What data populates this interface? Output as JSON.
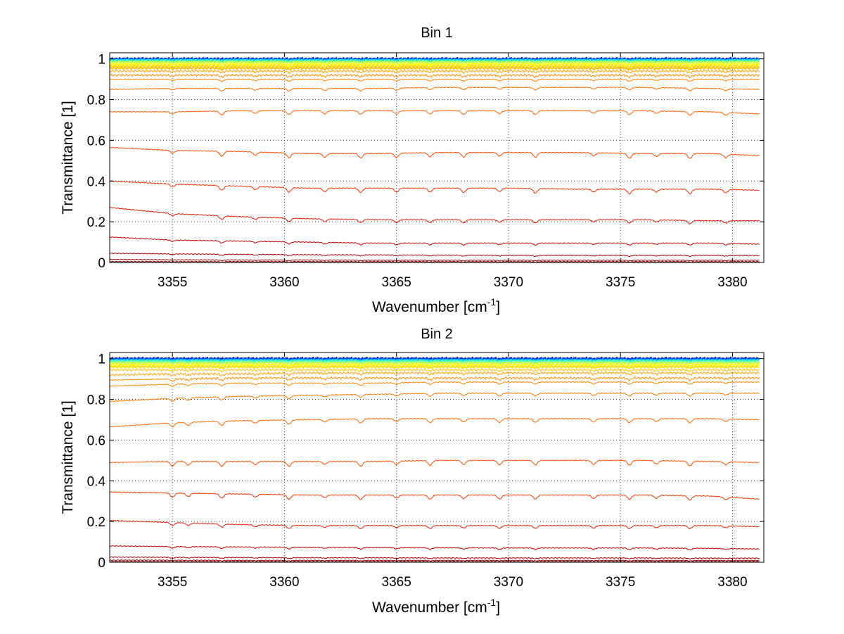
{
  "chart_data": [
    {
      "type": "line",
      "title": "Bin 1",
      "xlabel": "Wavenumber [cm",
      "xlabel_sup": "-1",
      "xlabel_end": "]",
      "ylabel": "Transmittance [1]",
      "xlim": [
        3352.2,
        3381.4
      ],
      "ylim": [
        0,
        1.03
      ],
      "xticks": [
        3355,
        3360,
        3365,
        3370,
        3375,
        3380
      ],
      "xtick_labels": [
        "3355",
        "3360",
        "3365",
        "3370",
        "3375",
        "3380"
      ],
      "yticks": [
        0,
        0.2,
        0.4,
        0.6,
        0.8,
        1
      ],
      "ytick_labels": [
        "0",
        "0.2",
        "0.4",
        "0.6",
        "0.8",
        "1"
      ],
      "grid": true,
      "legend": "none",
      "line_sample_wavenumbers": [
        3352.2,
        3355,
        3358,
        3361,
        3364,
        3367,
        3370,
        3373,
        3376,
        3379,
        3381.2
      ],
      "absorption_lines": [
        3355.0,
        3357.2,
        3358.7,
        3360.2,
        3361.8,
        3363.4,
        3365.0,
        3366.5,
        3368.0,
        3369.6,
        3371.2,
        3373.8,
        3375.4,
        3376.6,
        3378.1,
        3379.7
      ],
      "series": [
        {
          "color": "#00008f",
          "values": [
            1.0,
            1.0,
            1.0,
            1.0,
            1.0,
            1.0,
            1.0,
            1.0,
            1.0,
            1.0,
            1.0
          ]
        },
        {
          "color": "#0050ff",
          "values": [
            0.998,
            0.998,
            0.998,
            0.998,
            0.998,
            0.998,
            0.998,
            0.998,
            0.998,
            0.998,
            0.998
          ]
        },
        {
          "color": "#00c0ff",
          "values": [
            0.995,
            0.995,
            0.995,
            0.995,
            0.995,
            0.995,
            0.995,
            0.995,
            0.995,
            0.995,
            0.995
          ]
        },
        {
          "color": "#40ffbf",
          "values": [
            0.99,
            0.99,
            0.99,
            0.99,
            0.99,
            0.99,
            0.99,
            0.99,
            0.99,
            0.99,
            0.99
          ]
        },
        {
          "color": "#afff50",
          "values": [
            0.985,
            0.985,
            0.985,
            0.985,
            0.985,
            0.985,
            0.985,
            0.985,
            0.985,
            0.985,
            0.985
          ]
        },
        {
          "color": "#ffff00",
          "values": [
            0.975,
            0.975,
            0.975,
            0.975,
            0.975,
            0.975,
            0.975,
            0.975,
            0.975,
            0.975,
            0.975
          ]
        },
        {
          "color": "#ffdf00",
          "values": [
            0.965,
            0.965,
            0.965,
            0.965,
            0.965,
            0.965,
            0.965,
            0.965,
            0.965,
            0.965,
            0.965
          ]
        },
        {
          "color": "#ffbf00",
          "values": [
            0.955,
            0.955,
            0.955,
            0.955,
            0.955,
            0.955,
            0.955,
            0.955,
            0.955,
            0.955,
            0.955
          ]
        },
        {
          "color": "#ffa000",
          "values": [
            0.94,
            0.94,
            0.94,
            0.94,
            0.94,
            0.94,
            0.94,
            0.94,
            0.94,
            0.94,
            0.94
          ]
        },
        {
          "color": "#ff8c00",
          "values": [
            0.92,
            0.92,
            0.92,
            0.92,
            0.92,
            0.92,
            0.92,
            0.92,
            0.92,
            0.92,
            0.92
          ]
        },
        {
          "color": "#ff8000",
          "values": [
            0.9,
            0.9,
            0.9,
            0.9,
            0.9,
            0.9,
            0.9,
            0.9,
            0.9,
            0.9,
            0.9
          ]
        },
        {
          "color": "#ff7000",
          "values": [
            0.85,
            0.855,
            0.855,
            0.855,
            0.855,
            0.86,
            0.86,
            0.86,
            0.86,
            0.855,
            0.85
          ]
        },
        {
          "color": "#ff6000",
          "values": [
            0.74,
            0.74,
            0.745,
            0.745,
            0.745,
            0.745,
            0.745,
            0.745,
            0.745,
            0.74,
            0.73
          ]
        },
        {
          "color": "#ff4800",
          "values": [
            0.565,
            0.55,
            0.545,
            0.535,
            0.535,
            0.54,
            0.54,
            0.54,
            0.535,
            0.535,
            0.525
          ]
        },
        {
          "color": "#f03000",
          "values": [
            0.4,
            0.385,
            0.375,
            0.365,
            0.365,
            0.365,
            0.365,
            0.36,
            0.36,
            0.36,
            0.355
          ]
        },
        {
          "color": "#d81800",
          "values": [
            0.27,
            0.24,
            0.225,
            0.215,
            0.21,
            0.21,
            0.21,
            0.21,
            0.21,
            0.205,
            0.205
          ]
        },
        {
          "color": "#c00000",
          "values": [
            0.125,
            0.11,
            0.105,
            0.1,
            0.095,
            0.095,
            0.095,
            0.095,
            0.095,
            0.095,
            0.09
          ]
        },
        {
          "color": "#a80000",
          "values": [
            0.045,
            0.042,
            0.04,
            0.038,
            0.037,
            0.036,
            0.035,
            0.035,
            0.035,
            0.035,
            0.034
          ]
        },
        {
          "color": "#900000",
          "values": [
            0.015,
            0.013,
            0.012,
            0.012,
            0.011,
            0.011,
            0.011,
            0.011,
            0.011,
            0.011,
            0.011
          ]
        },
        {
          "color": "#800000",
          "values": [
            0.004,
            0.004,
            0.004,
            0.004,
            0.004,
            0.004,
            0.004,
            0.004,
            0.004,
            0.004,
            0.004
          ]
        }
      ]
    },
    {
      "type": "line",
      "title": "Bin 2",
      "xlabel": "Wavenumber [cm",
      "xlabel_sup": "-1",
      "xlabel_end": "]",
      "ylabel": "Transmittance [1]",
      "xlim": [
        3352.2,
        3381.4
      ],
      "ylim": [
        0,
        1.03
      ],
      "xticks": [
        3355,
        3360,
        3365,
        3370,
        3375,
        3380
      ],
      "xtick_labels": [
        "3355",
        "3360",
        "3365",
        "3370",
        "3375",
        "3380"
      ],
      "yticks": [
        0,
        0.2,
        0.4,
        0.6,
        0.8,
        1
      ],
      "ytick_labels": [
        "0",
        "0.2",
        "0.4",
        "0.6",
        "0.8",
        "1"
      ],
      "grid": true,
      "legend": "none",
      "line_sample_wavenumbers": [
        3352.2,
        3355,
        3358,
        3361,
        3364,
        3367,
        3370,
        3373,
        3376,
        3379,
        3381.2
      ],
      "absorption_lines": [
        3355.0,
        3355.7,
        3357.2,
        3358.7,
        3360.2,
        3361.8,
        3363.4,
        3365.0,
        3366.5,
        3368.0,
        3369.6,
        3371.2,
        3373.8,
        3375.4,
        3376.6,
        3378.1,
        3379.7
      ],
      "series": [
        {
          "color": "#00008f",
          "values": [
            1.0,
            1.0,
            1.0,
            1.0,
            1.0,
            1.0,
            1.0,
            1.0,
            1.0,
            1.0,
            1.0
          ]
        },
        {
          "color": "#0050ff",
          "values": [
            0.998,
            0.998,
            0.998,
            0.998,
            0.998,
            0.998,
            0.998,
            0.998,
            0.998,
            0.998,
            0.998
          ]
        },
        {
          "color": "#00c0ff",
          "values": [
            0.993,
            0.993,
            0.993,
            0.993,
            0.993,
            0.993,
            0.993,
            0.993,
            0.993,
            0.993,
            0.993
          ]
        },
        {
          "color": "#40ffbf",
          "values": [
            0.988,
            0.988,
            0.988,
            0.988,
            0.988,
            0.988,
            0.988,
            0.988,
            0.988,
            0.988,
            0.988
          ]
        },
        {
          "color": "#afff50",
          "values": [
            0.98,
            0.98,
            0.98,
            0.98,
            0.98,
            0.98,
            0.98,
            0.98,
            0.98,
            0.98,
            0.98
          ]
        },
        {
          "color": "#ffff00",
          "values": [
            0.97,
            0.97,
            0.97,
            0.97,
            0.97,
            0.97,
            0.97,
            0.97,
            0.97,
            0.97,
            0.97
          ]
        },
        {
          "color": "#ffdf00",
          "values": [
            0.96,
            0.96,
            0.96,
            0.96,
            0.96,
            0.96,
            0.96,
            0.96,
            0.96,
            0.96,
            0.96
          ]
        },
        {
          "color": "#ffbf00",
          "values": [
            0.945,
            0.945,
            0.945,
            0.945,
            0.945,
            0.945,
            0.945,
            0.945,
            0.945,
            0.945,
            0.945
          ]
        },
        {
          "color": "#ffa000",
          "values": [
            0.92,
            0.925,
            0.925,
            0.93,
            0.93,
            0.93,
            0.93,
            0.93,
            0.93,
            0.93,
            0.93
          ]
        },
        {
          "color": "#ff9000",
          "values": [
            0.895,
            0.9,
            0.905,
            0.905,
            0.905,
            0.905,
            0.905,
            0.905,
            0.905,
            0.905,
            0.905
          ]
        },
        {
          "color": "#ff8400",
          "values": [
            0.865,
            0.875,
            0.88,
            0.88,
            0.88,
            0.885,
            0.885,
            0.885,
            0.885,
            0.885,
            0.885
          ]
        },
        {
          "color": "#ff7800",
          "values": [
            0.79,
            0.805,
            0.815,
            0.82,
            0.825,
            0.83,
            0.83,
            0.83,
            0.83,
            0.83,
            0.83
          ]
        },
        {
          "color": "#ff6800",
          "values": [
            0.665,
            0.685,
            0.695,
            0.7,
            0.705,
            0.705,
            0.705,
            0.705,
            0.705,
            0.705,
            0.7
          ]
        },
        {
          "color": "#ff5000",
          "values": [
            0.49,
            0.495,
            0.495,
            0.495,
            0.495,
            0.5,
            0.5,
            0.5,
            0.5,
            0.495,
            0.49
          ]
        },
        {
          "color": "#f03800",
          "values": [
            0.345,
            0.34,
            0.335,
            0.33,
            0.33,
            0.33,
            0.33,
            0.33,
            0.33,
            0.325,
            0.31
          ]
        },
        {
          "color": "#d82000",
          "values": [
            0.205,
            0.195,
            0.185,
            0.18,
            0.18,
            0.18,
            0.18,
            0.18,
            0.18,
            0.18,
            0.175
          ]
        },
        {
          "color": "#c00000",
          "values": [
            0.08,
            0.077,
            0.075,
            0.073,
            0.072,
            0.071,
            0.07,
            0.07,
            0.07,
            0.068,
            0.065
          ]
        },
        {
          "color": "#a80000",
          "values": [
            0.025,
            0.024,
            0.023,
            0.022,
            0.022,
            0.021,
            0.021,
            0.021,
            0.021,
            0.02,
            0.02
          ]
        },
        {
          "color": "#900000",
          "values": [
            0.01,
            0.01,
            0.009,
            0.009,
            0.009,
            0.009,
            0.009,
            0.009,
            0.009,
            0.009,
            0.009
          ]
        },
        {
          "color": "#800000",
          "values": [
            0.003,
            0.003,
            0.003,
            0.003,
            0.003,
            0.003,
            0.003,
            0.003,
            0.003,
            0.003,
            0.003
          ]
        }
      ]
    }
  ]
}
